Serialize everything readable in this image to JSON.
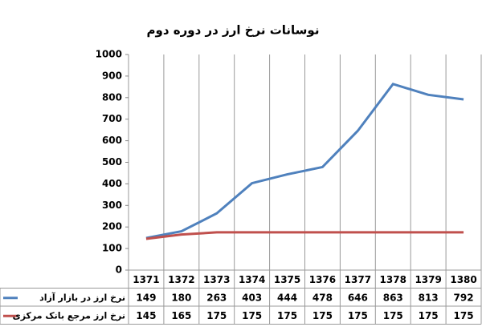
{
  "chart_data": {
    "type": "line",
    "title": "نوسانات نرخ ارز در دوره دوم",
    "categories": [
      "1371",
      "1372",
      "1373",
      "1374",
      "1375",
      "1376",
      "1377",
      "1378",
      "1379",
      "1380"
    ],
    "series": [
      {
        "name": "نرخ ارز در بازار آزاد",
        "color": "#4f81bd",
        "values": [
          149,
          180,
          263,
          403,
          444,
          478,
          646,
          863,
          813,
          792
        ]
      },
      {
        "name": "نرخ ارز مرجع بانک مرکزی",
        "color": "#c0504d",
        "values": [
          145,
          165,
          175,
          175,
          175,
          175,
          175,
          175,
          175,
          175
        ]
      }
    ],
    "ylim": [
      0,
      1000
    ],
    "yticks": [
      0,
      100,
      200,
      300,
      400,
      500,
      600,
      700,
      800,
      900,
      1000
    ]
  }
}
